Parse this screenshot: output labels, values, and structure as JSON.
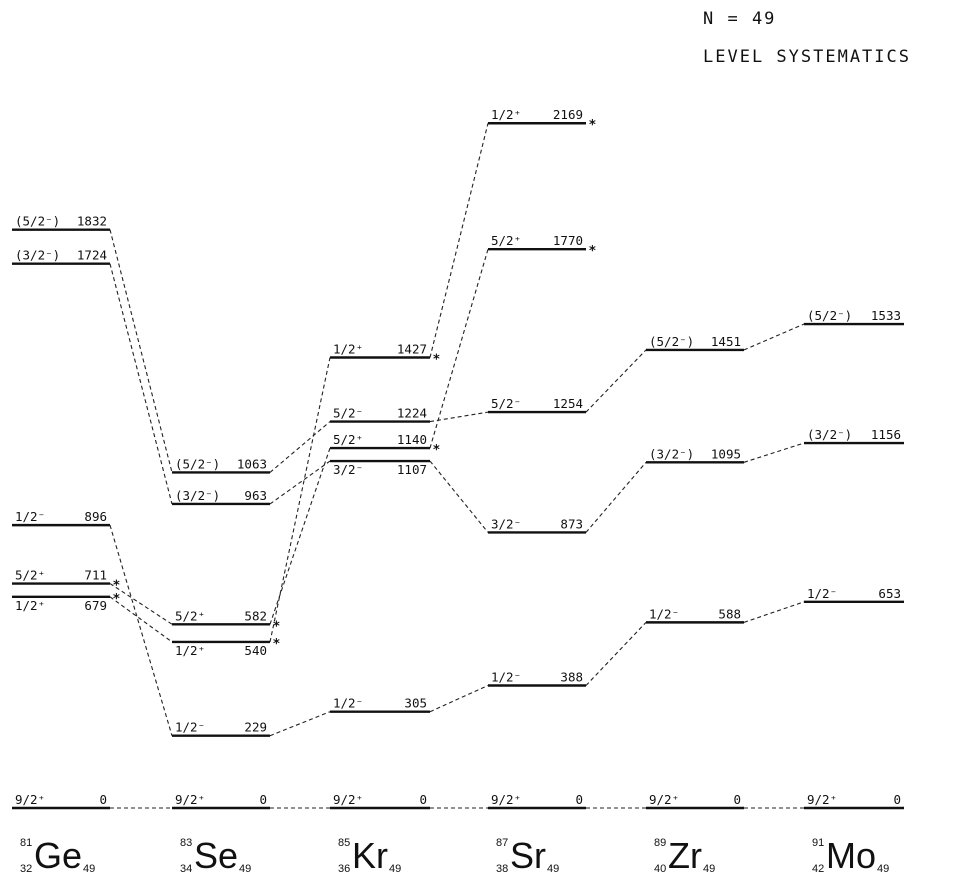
{
  "title": {
    "line1": "N  =  49",
    "line2": "LEVEL  SYSTEMATICS"
  },
  "nuclei": [
    {
      "id": "Ge",
      "A": "81",
      "Z": "32",
      "symbol": "Ge",
      "N": "49"
    },
    {
      "id": "Se",
      "A": "83",
      "Z": "34",
      "symbol": "Se",
      "N": "49"
    },
    {
      "id": "Kr",
      "A": "85",
      "Z": "36",
      "symbol": "Kr",
      "N": "49"
    },
    {
      "id": "Sr",
      "A": "87",
      "Z": "38",
      "symbol": "Sr",
      "N": "49"
    },
    {
      "id": "Zr",
      "A": "89",
      "Z": "40",
      "symbol": "Zr",
      "N": "49"
    },
    {
      "id": "Mo",
      "A": "91",
      "Z": "42",
      "symbol": "Mo",
      "N": "49"
    }
  ],
  "levels": [
    {
      "nucleus": "Ge",
      "spin": "(5/2⁻)",
      "energy": "1832"
    },
    {
      "nucleus": "Ge",
      "spin": "(3/2⁻)",
      "energy": "1724"
    },
    {
      "nucleus": "Ge",
      "spin": "1/2⁻",
      "energy": "896"
    },
    {
      "nucleus": "Ge",
      "spin": "5/2⁺",
      "energy": "711",
      "mark": "*"
    },
    {
      "nucleus": "Ge",
      "spin": "1/2⁺",
      "energy": "679",
      "mark": "*"
    },
    {
      "nucleus": "Ge",
      "spin": "9/2⁺",
      "energy": "0"
    },
    {
      "nucleus": "Se",
      "spin": "(5/2⁻)",
      "energy": "1063"
    },
    {
      "nucleus": "Se",
      "spin": "(3/2⁻)",
      "energy": "963"
    },
    {
      "nucleus": "Se",
      "spin": "5/2⁺",
      "energy": "582",
      "mark": "*"
    },
    {
      "nucleus": "Se",
      "spin": "1/2⁺",
      "energy": "540",
      "mark": "*"
    },
    {
      "nucleus": "Se",
      "spin": "1/2⁻",
      "energy": "229"
    },
    {
      "nucleus": "Se",
      "spin": "9/2⁺",
      "energy": "0"
    },
    {
      "nucleus": "Kr",
      "spin": "1/2⁺",
      "energy": "1427",
      "mark": "*"
    },
    {
      "nucleus": "Kr",
      "spin": "5/2⁻",
      "energy": "1224"
    },
    {
      "nucleus": "Kr",
      "spin": "5/2⁺",
      "energy": "1140",
      "mark": "*"
    },
    {
      "nucleus": "Kr",
      "spin": "3/2⁻",
      "energy": "1107"
    },
    {
      "nucleus": "Kr",
      "spin": "1/2⁻",
      "energy": "305"
    },
    {
      "nucleus": "Kr",
      "spin": "9/2⁺",
      "energy": "0"
    },
    {
      "nucleus": "Sr",
      "spin": "1/2⁺",
      "energy": "2169",
      "mark": "*"
    },
    {
      "nucleus": "Sr",
      "spin": "5/2⁺",
      "energy": "1770",
      "mark": "*"
    },
    {
      "nucleus": "Sr",
      "spin": "5/2⁻",
      "energy": "1254"
    },
    {
      "nucleus": "Sr",
      "spin": "3/2⁻",
      "energy": "873"
    },
    {
      "nucleus": "Sr",
      "spin": "1/2⁻",
      "energy": "388"
    },
    {
      "nucleus": "Sr",
      "spin": "9/2⁺",
      "energy": "0"
    },
    {
      "nucleus": "Zr",
      "spin": "(5/2⁻)",
      "energy": "1451"
    },
    {
      "nucleus": "Zr",
      "spin": "(3/2⁻)",
      "energy": "1095"
    },
    {
      "nucleus": "Zr",
      "spin": "1/2⁻",
      "energy": "588"
    },
    {
      "nucleus": "Zr",
      "spin": "9/2⁺",
      "energy": "0"
    },
    {
      "nucleus": "Mo",
      "spin": "(5/2⁻)",
      "energy": "1533"
    },
    {
      "nucleus": "Mo",
      "spin": "(3/2⁻)",
      "energy": "1156"
    },
    {
      "nucleus": "Mo",
      "spin": "1/2⁻",
      "energy": "653"
    },
    {
      "nucleus": "Mo",
      "spin": "9/2⁺",
      "energy": "0"
    }
  ],
  "connections": [
    {
      "from": [
        "Ge",
        "(5/2⁻)"
      ],
      "to": [
        "Se",
        "(5/2⁻)"
      ]
    },
    {
      "from": [
        "Ge",
        "(3/2⁻)"
      ],
      "to": [
        "Se",
        "(3/2⁻)"
      ]
    },
    {
      "from": [
        "Ge",
        "1/2⁻"
      ],
      "to": [
        "Se",
        "1/2⁻"
      ]
    },
    {
      "from": [
        "Ge",
        "5/2⁺"
      ],
      "to": [
        "Se",
        "5/2⁺"
      ]
    },
    {
      "from": [
        "Ge",
        "1/2⁺"
      ],
      "to": [
        "Se",
        "1/2⁺"
      ]
    },
    {
      "from": [
        "Ge",
        "9/2⁺"
      ],
      "to": [
        "Se",
        "9/2⁺"
      ]
    },
    {
      "from": [
        "Se",
        "(5/2⁻)"
      ],
      "to": [
        "Kr",
        "5/2⁻"
      ]
    },
    {
      "from": [
        "Se",
        "(3/2⁻)"
      ],
      "to": [
        "Kr",
        "3/2⁻"
      ]
    },
    {
      "from": [
        "Se",
        "5/2⁺"
      ],
      "to": [
        "Kr",
        "5/2⁺"
      ]
    },
    {
      "from": [
        "Se",
        "1/2⁺"
      ],
      "to": [
        "Kr",
        "1/2⁺"
      ]
    },
    {
      "from": [
        "Se",
        "1/2⁻"
      ],
      "to": [
        "Kr",
        "1/2⁻"
      ]
    },
    {
      "from": [
        "Se",
        "9/2⁺"
      ],
      "to": [
        "Kr",
        "9/2⁺"
      ]
    },
    {
      "from": [
        "Kr",
        "1/2⁺"
      ],
      "to": [
        "Sr",
        "1/2⁺"
      ]
    },
    {
      "from": [
        "Kr",
        "5/2⁺"
      ],
      "to": [
        "Sr",
        "5/2⁺"
      ]
    },
    {
      "from": [
        "Kr",
        "5/2⁻"
      ],
      "to": [
        "Sr",
        "5/2⁻"
      ]
    },
    {
      "from": [
        "Kr",
        "3/2⁻"
      ],
      "to": [
        "Sr",
        "3/2⁻"
      ]
    },
    {
      "from": [
        "Kr",
        "1/2⁻"
      ],
      "to": [
        "Sr",
        "1/2⁻"
      ]
    },
    {
      "from": [
        "Kr",
        "9/2⁺"
      ],
      "to": [
        "Sr",
        "9/2⁺"
      ]
    },
    {
      "from": [
        "Sr",
        "5/2⁻"
      ],
      "to": [
        "Zr",
        "(5/2⁻)"
      ]
    },
    {
      "from": [
        "Sr",
        "3/2⁻"
      ],
      "to": [
        "Zr",
        "(3/2⁻)"
      ]
    },
    {
      "from": [
        "Sr",
        "1/2⁻"
      ],
      "to": [
        "Zr",
        "1/2⁻"
      ]
    },
    {
      "from": [
        "Sr",
        "9/2⁺"
      ],
      "to": [
        "Zr",
        "9/2⁺"
      ]
    },
    {
      "from": [
        "Zr",
        "(5/2⁻)"
      ],
      "to": [
        "Mo",
        "(5/2⁻)"
      ]
    },
    {
      "from": [
        "Zr",
        "(3/2⁻)"
      ],
      "to": [
        "Mo",
        "(3/2⁻)"
      ]
    },
    {
      "from": [
        "Zr",
        "1/2⁻"
      ],
      "to": [
        "Mo",
        "1/2⁻"
      ]
    },
    {
      "from": [
        "Zr",
        "9/2⁺"
      ],
      "to": [
        "Mo",
        "9/2⁺"
      ]
    }
  ]
}
